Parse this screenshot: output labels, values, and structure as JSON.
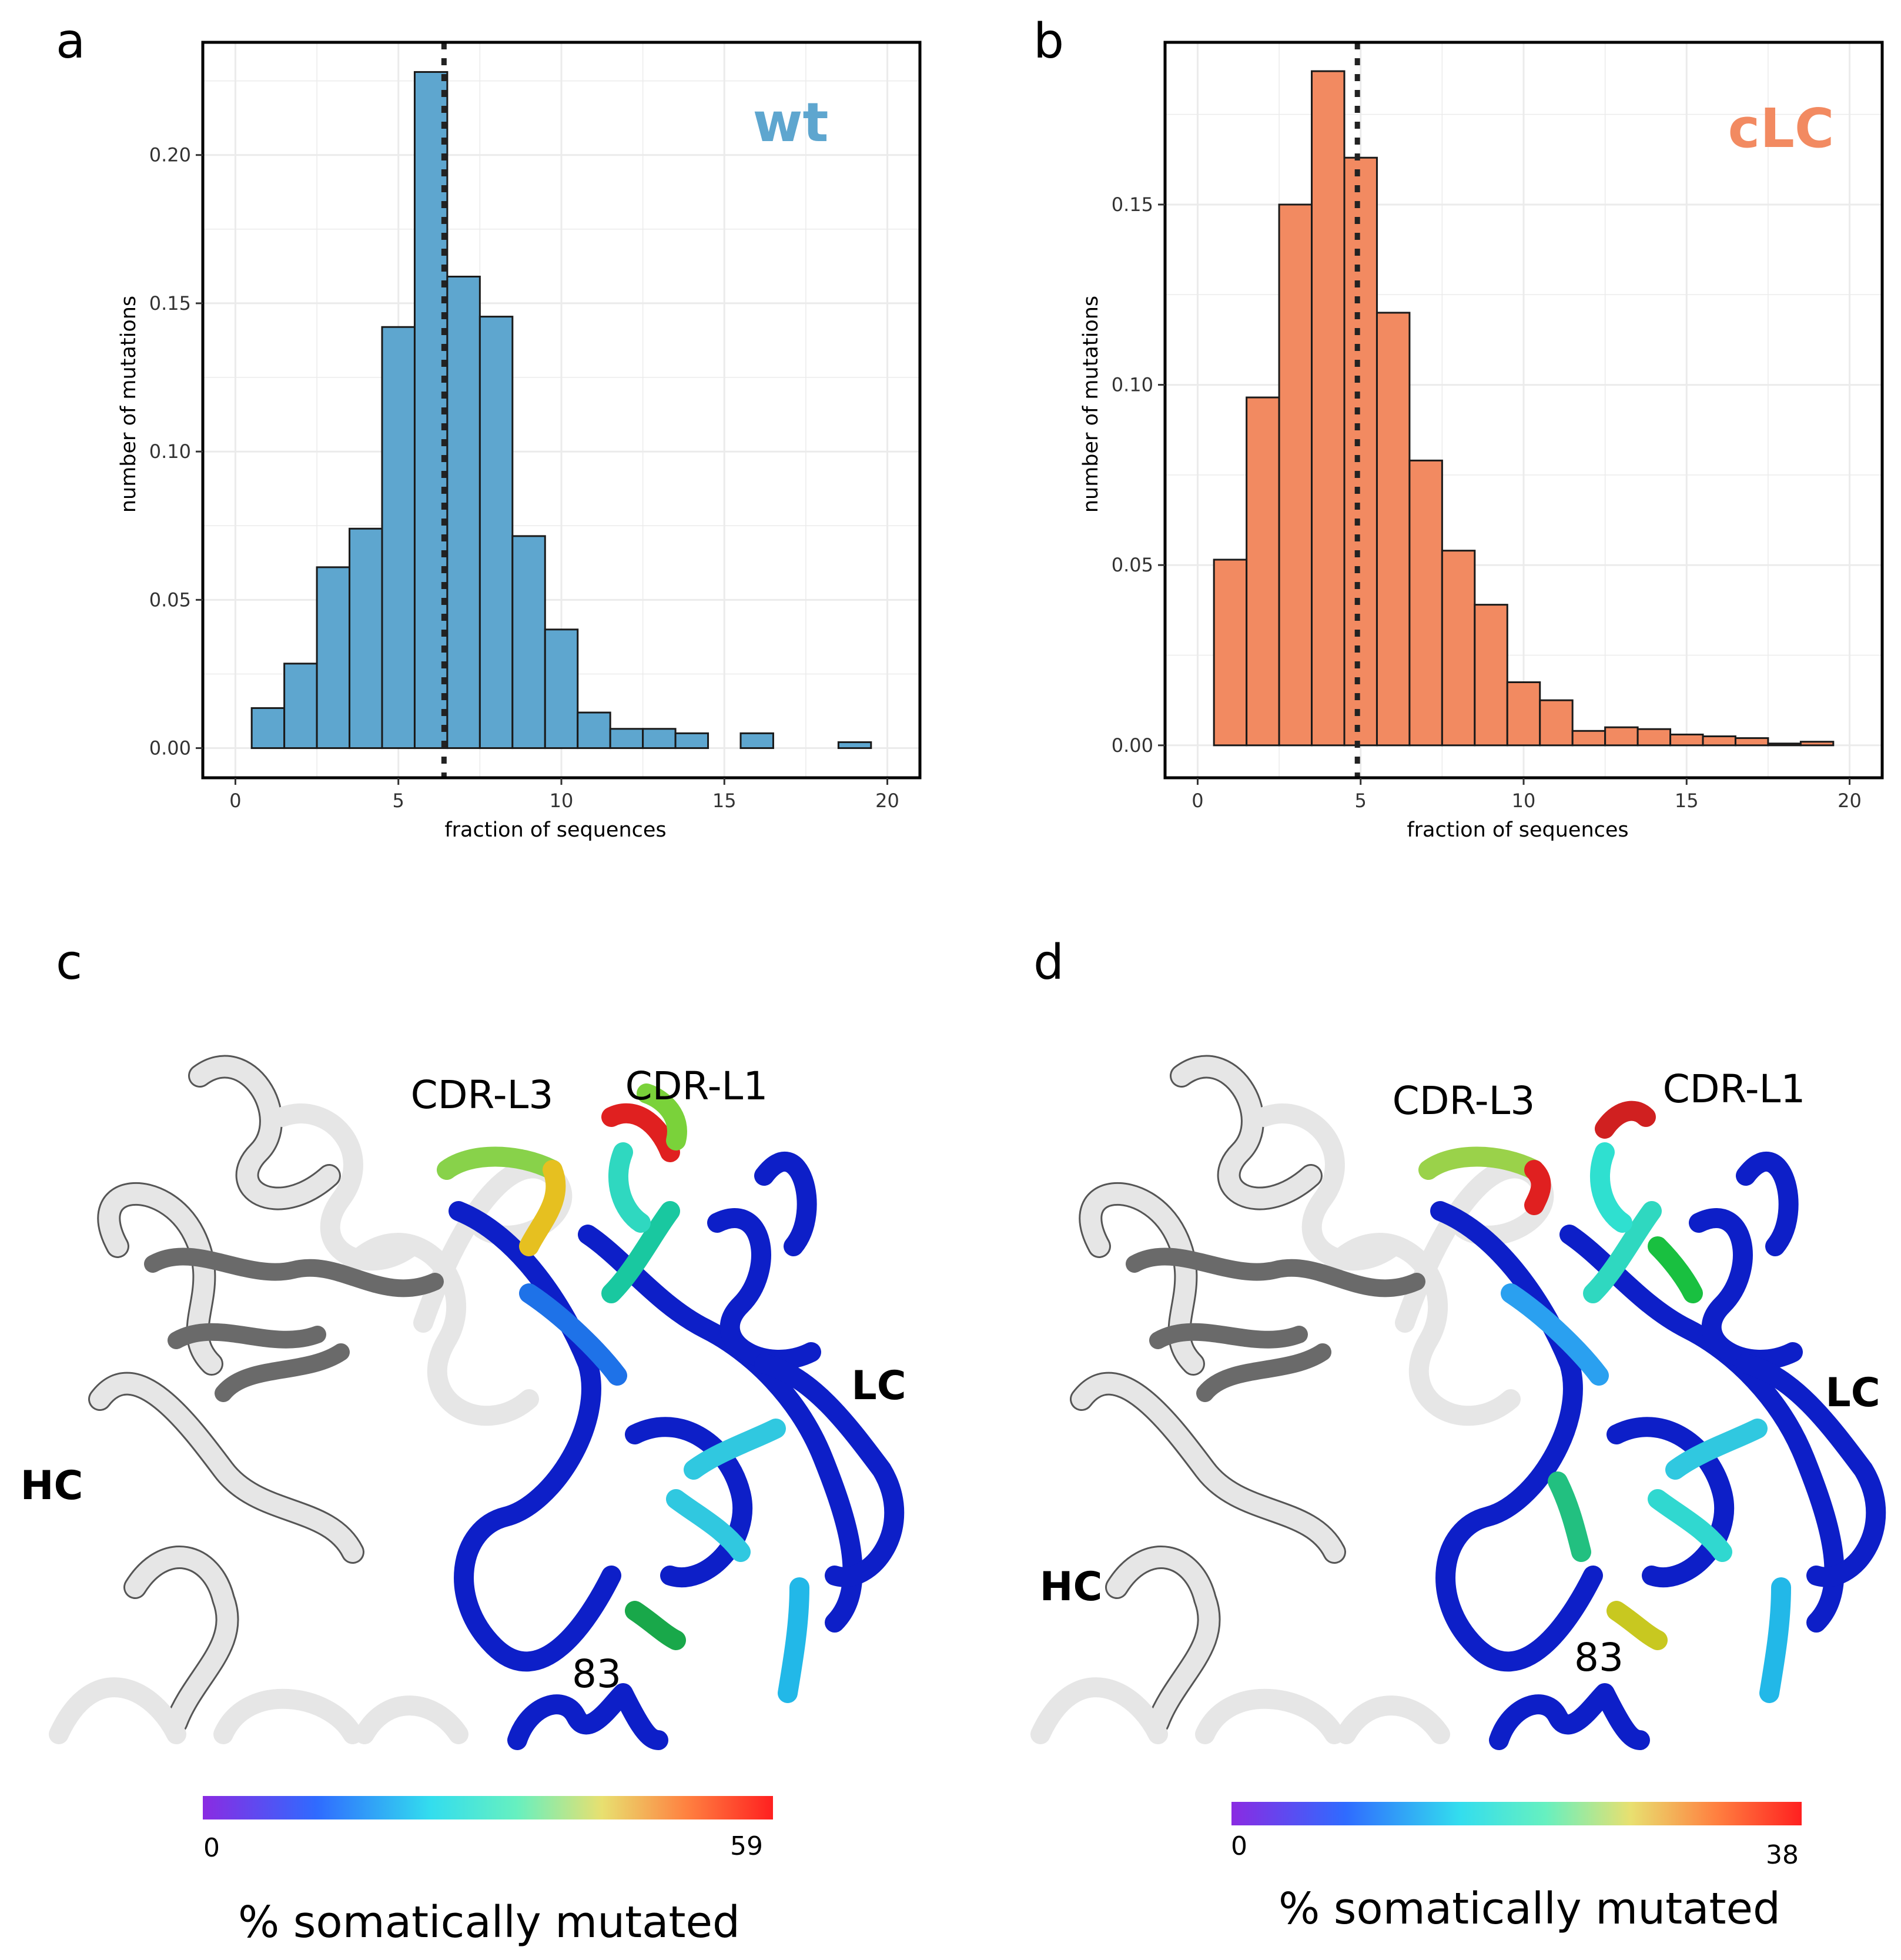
{
  "panels": {
    "a": "a",
    "b": "b",
    "c": "c",
    "d": "d"
  },
  "chart_data": [
    {
      "type": "bar",
      "panel": "a",
      "series_name": "wt",
      "ylabel": "number of mutations",
      "xlabel": "fraction of sequences",
      "xlim": [
        -1,
        21
      ],
      "ylim": [
        -0.01,
        0.238
      ],
      "xticks": [
        0,
        5,
        10,
        15,
        20
      ],
      "yticks": [
        0.0,
        0.05,
        0.1,
        0.15,
        0.2
      ],
      "ytick_labels": [
        "0.00",
        "0.05",
        "0.10",
        "0.15",
        "0.20"
      ],
      "bin_width": 1,
      "x": [
        1,
        2,
        3,
        4,
        5,
        6,
        7,
        8,
        9,
        10,
        11,
        12,
        13,
        14,
        15,
        16,
        17,
        18,
        19
      ],
      "values": [
        0.0135,
        0.0285,
        0.061,
        0.074,
        0.142,
        0.228,
        0.159,
        0.1455,
        0.0715,
        0.04,
        0.012,
        0.0065,
        0.0065,
        0.005,
        0.0,
        0.005,
        0.0,
        0.0,
        0.002
      ],
      "mean_line": 6.4,
      "grid": true,
      "color": "#5ea6cf"
    },
    {
      "type": "bar",
      "panel": "b",
      "series_name": "cLC",
      "ylabel": "number of mutations",
      "xlabel": "fraction of sequences",
      "xlim": [
        -1,
        21
      ],
      "ylim": [
        -0.009,
        0.195
      ],
      "xticks": [
        0,
        5,
        10,
        15,
        20
      ],
      "yticks": [
        0.0,
        0.05,
        0.1,
        0.15
      ],
      "ytick_labels": [
        "0.00",
        "0.05",
        "0.10",
        "0.15"
      ],
      "bin_width": 1,
      "x": [
        1,
        2,
        3,
        4,
        5,
        6,
        7,
        8,
        9,
        10,
        11,
        12,
        13,
        14,
        15,
        16,
        17,
        18,
        19
      ],
      "values": [
        0.0515,
        0.0965,
        0.15,
        0.187,
        0.163,
        0.12,
        0.079,
        0.054,
        0.039,
        0.0175,
        0.0125,
        0.004,
        0.005,
        0.0045,
        0.003,
        0.0025,
        0.002,
        0.0005,
        0.001
      ],
      "mean_line": 4.9,
      "grid": true,
      "color": "#f28a61"
    }
  ],
  "structures": [
    {
      "panel": "c",
      "cdr_l3": "CDR-L3",
      "cdr_l1": "CDR-L1",
      "lc": "LC",
      "hc": "HC",
      "residue": "83",
      "colorbar_min": "0",
      "colorbar_max": "59",
      "colorbar_title": "% somatically mutated"
    },
    {
      "panel": "d",
      "cdr_l3": "CDR-L3",
      "cdr_l1": "CDR-L1",
      "lc": "LC",
      "hc": "HC",
      "residue": "83",
      "colorbar_min": "0",
      "colorbar_max": "38",
      "colorbar_title": "% somatically mutated"
    }
  ],
  "colors": {
    "wt": "#5ea6cf",
    "clc": "#f28a61",
    "chain_blue": "#0d1fc8",
    "chain_white": "#e6e6e6",
    "chain_gray": "#6e6e6e"
  }
}
